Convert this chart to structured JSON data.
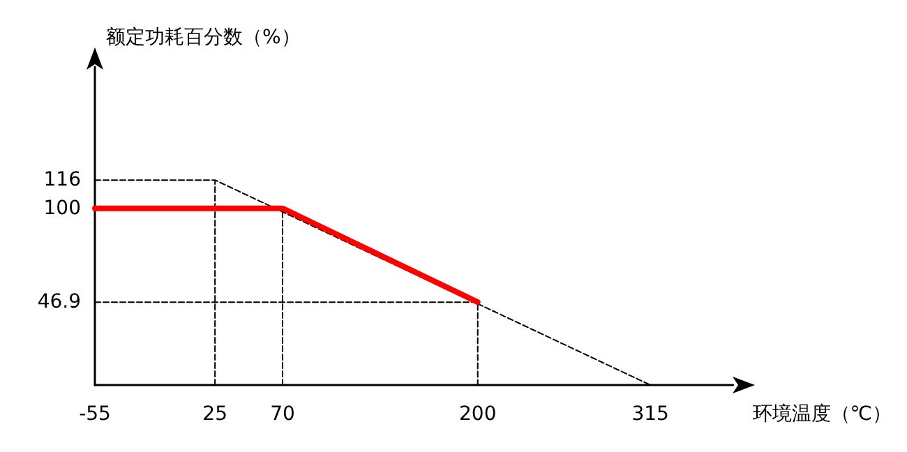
{
  "chart_data": {
    "type": "line",
    "xlabel": "环境温度（℃）",
    "ylabel": "额定功耗百分数（%）",
    "xlim": [
      -55,
      370
    ],
    "ylim": [
      0,
      180
    ],
    "xticks": [
      -55,
      25,
      70,
      200,
      315
    ],
    "yticks": [
      46.9,
      100,
      116
    ],
    "marker": "none",
    "series": [
      {
        "color": "#000000",
        "line_style": "dashed",
        "x": [
          -55,
          25,
          315,
          null,
          25,
          25,
          null,
          70,
          70,
          null,
          -55,
          200,
          200
        ],
        "values": [
          116,
          116,
          0,
          null,
          0,
          116,
          null,
          0,
          100,
          null,
          46.9,
          46.9,
          0
        ]
      },
      {
        "color": "#ff0000",
        "line_style": "solid",
        "x": [
          -55,
          70,
          200
        ],
        "values": [
          100,
          100,
          46.9
        ]
      }
    ]
  }
}
